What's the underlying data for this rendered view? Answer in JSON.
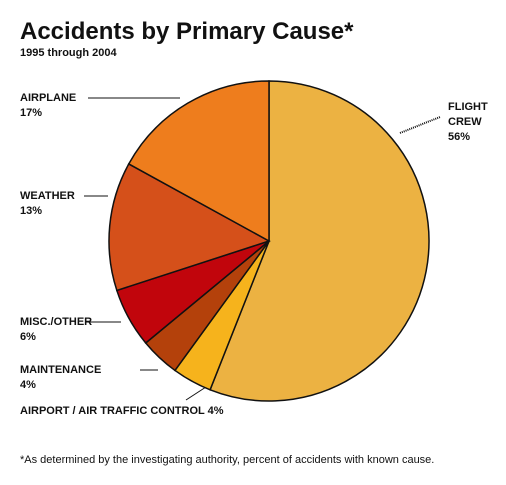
{
  "chart_data": {
    "type": "pie",
    "title": "Accidents by Primary Cause*",
    "subtitle": "1995 through 2004",
    "categories": [
      "FLIGHT CREW",
      "AIRPORT / AIR TRAFFIC CONTROL",
      "MAINTENANCE",
      "MISC./OTHER",
      "WEATHER",
      "AIRPLANE"
    ],
    "values": [
      56,
      4,
      4,
      6,
      13,
      17
    ],
    "value_labels": [
      "56%",
      "4%",
      "4%",
      "6%",
      "13%",
      "17%"
    ],
    "colors": [
      "#ecb242",
      "#f6b31c",
      "#b4410b",
      "#c1050c",
      "#d5501a",
      "#ee7d1d"
    ],
    "footnote": "*As determined by the investigating authority, percent of accidents with known cause."
  }
}
